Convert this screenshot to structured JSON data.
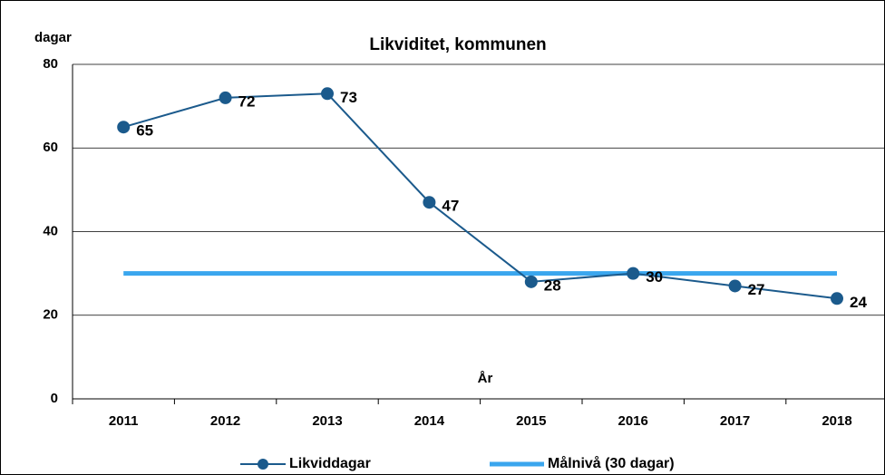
{
  "chart_data": {
    "type": "line",
    "title": "Likviditet, kommunen",
    "y_label": "dagar",
    "x_label": "År",
    "categories": [
      "2011",
      "2012",
      "2013",
      "2014",
      "2015",
      "2016",
      "2017",
      "2018"
    ],
    "series": [
      {
        "name": "Likviddagar",
        "color": "#1b5a8c",
        "markers": true,
        "data_labels": true,
        "values": [
          65,
          72,
          73,
          47,
          28,
          30,
          27,
          24
        ]
      },
      {
        "name": "Målnivå (30 dagar)",
        "color": "#3aa6ee",
        "markers": false,
        "data_labels": false,
        "values": [
          30,
          30,
          30,
          30,
          30,
          30,
          30,
          30
        ]
      }
    ],
    "ylim": [
      0,
      80
    ],
    "yticks": [
      0,
      20,
      40,
      60,
      80
    ],
    "grid": true
  }
}
